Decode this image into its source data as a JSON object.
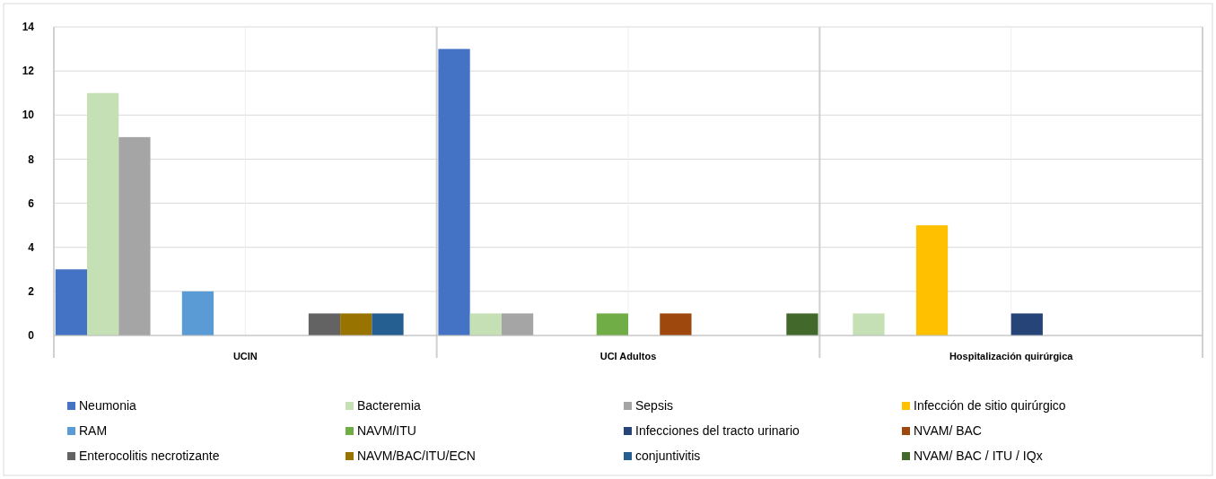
{
  "chart_data": {
    "type": "bar",
    "categories": [
      "UCIN",
      "UCI Adultos",
      "Hospitalización quirúrgica"
    ],
    "series": [
      {
        "name": "Neumonia",
        "color": "#4472c4",
        "values": [
          3,
          13,
          0
        ]
      },
      {
        "name": "Bacteremia",
        "color": "#c5e0b4",
        "values": [
          11,
          1,
          1
        ]
      },
      {
        "name": "Sepsis",
        "color": "#a5a5a5",
        "values": [
          9,
          1,
          0
        ]
      },
      {
        "name": "Infección de sitio quirúrgico",
        "color": "#ffc000",
        "values": [
          0,
          0,
          5
        ]
      },
      {
        "name": "RAM",
        "color": "#5b9bd5",
        "values": [
          2,
          0,
          0
        ]
      },
      {
        "name": "NAVM/ITU",
        "color": "#70ad47",
        "values": [
          0,
          1,
          0
        ]
      },
      {
        "name": "Infecciones del tracto urinario",
        "color": "#264478",
        "values": [
          0,
          0,
          1
        ]
      },
      {
        "name": "NVAM/ BAC",
        "color": "#9e480e",
        "values": [
          0,
          1,
          0
        ]
      },
      {
        "name": "Enterocolitis necrotizante",
        "color": "#636363",
        "values": [
          1,
          0,
          0
        ]
      },
      {
        "name": "NAVM/BAC/ITU/ECN",
        "color": "#997300",
        "values": [
          1,
          0,
          0
        ]
      },
      {
        "name": "conjuntivitis",
        "color": "#255e91",
        "values": [
          1,
          0,
          0
        ]
      },
      {
        "name": "NVAM/ BAC / ITU / IQx",
        "color": "#43682b",
        "values": [
          0,
          1,
          0
        ]
      }
    ],
    "ylim": [
      0,
      14
    ],
    "yticks": [
      0,
      2,
      4,
      6,
      8,
      10,
      12,
      14
    ],
    "grid": true,
    "legend": "bottom"
  }
}
